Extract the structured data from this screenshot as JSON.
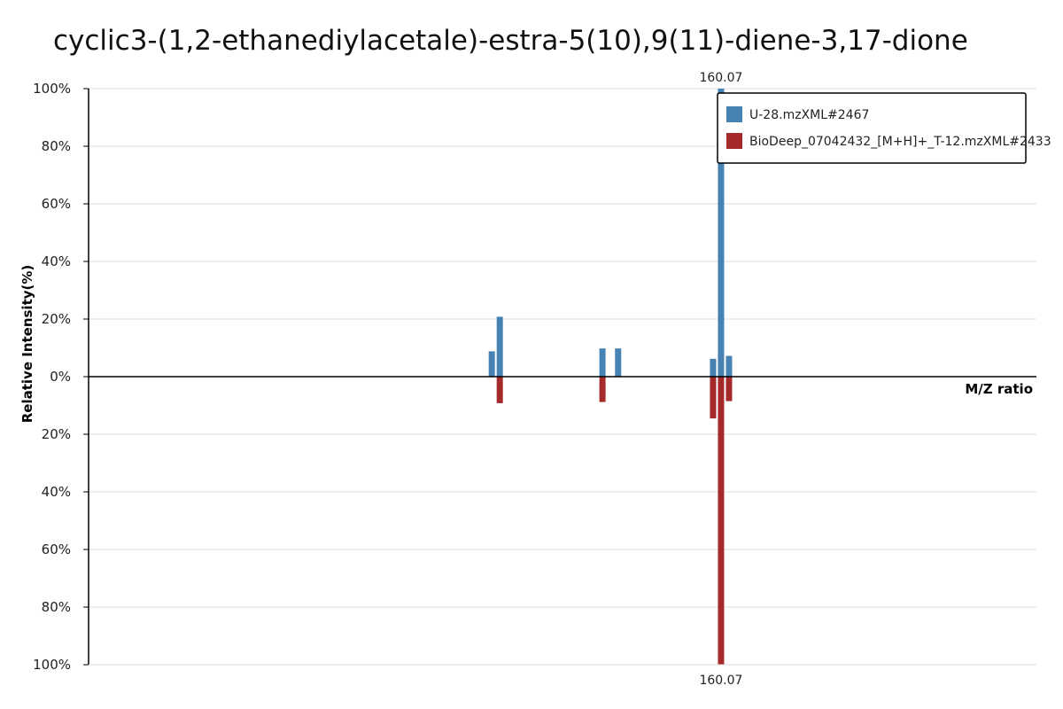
{
  "chart_data": {
    "type": "bar",
    "title": "cyclic3-(1,2-ethanediylacetale)-estra-5(10),9(11)-diene-3,17-dione",
    "xlabel": "M/Z ratio",
    "ylabel": "Relative Intensity(%)",
    "ylim_top": [
      0,
      100
    ],
    "ylim_bottom": [
      0,
      100
    ],
    "y_ticks_top": [
      "0%",
      "20%",
      "40%",
      "60%",
      "80%",
      "100%"
    ],
    "y_ticks_bottom": [
      "20%",
      "40%",
      "60%",
      "80%",
      "100%"
    ],
    "grid": true,
    "legend_position": "top-right",
    "peak_label_top": "160.07",
    "peak_label_bottom": "160.07",
    "series": [
      {
        "name": "U-28.mzXML#2467",
        "color": "#4682b4",
        "direction": "up",
        "peaks": [
          {
            "mz": 131.05,
            "intensity": 8.8
          },
          {
            "mz": 132.06,
            "intensity": 20.8
          },
          {
            "mz": 145.06,
            "intensity": 9.8
          },
          {
            "mz": 147.04,
            "intensity": 9.8
          },
          {
            "mz": 159.06,
            "intensity": 6.2
          },
          {
            "mz": 160.07,
            "intensity": 100
          },
          {
            "mz": 161.08,
            "intensity": 7.2
          }
        ]
      },
      {
        "name": "BioDeep_07042432_[M+H]+_T-12.mzXML#2433",
        "color": "#a52a2a",
        "direction": "down",
        "peaks": [
          {
            "mz": 132.06,
            "intensity": 9.2
          },
          {
            "mz": 145.06,
            "intensity": 8.8
          },
          {
            "mz": 159.06,
            "intensity": 14.5
          },
          {
            "mz": 160.07,
            "intensity": 100
          },
          {
            "mz": 161.08,
            "intensity": 8.5
          }
        ]
      }
    ]
  }
}
